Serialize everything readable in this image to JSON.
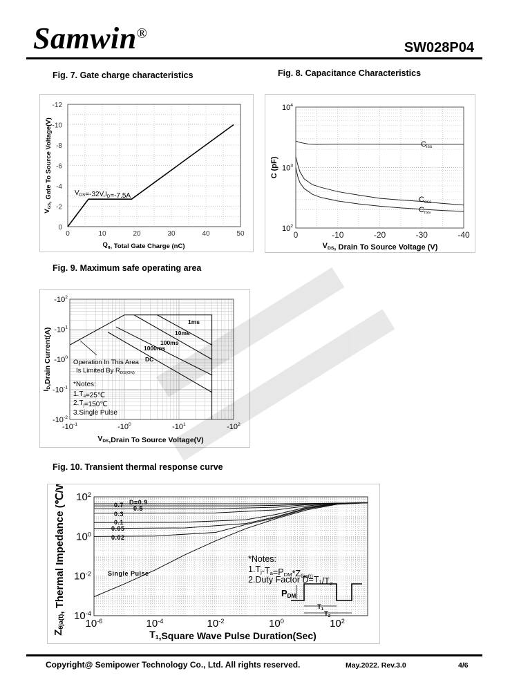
{
  "header": {
    "brand": "Samwin",
    "registered": "®",
    "part_number": "SW028P04"
  },
  "footer": {
    "copyright": "Copyright@ Semipower Technology Co., Ltd. All rights reserved.",
    "revision": "May.2022. Rev.3.0",
    "page": "4/6"
  },
  "figures": {
    "fig7": {
      "title": "Fig. 7. Gate charge characteristics"
    },
    "fig8": {
      "title": "Fig. 8. Capacitance Characteristics"
    },
    "fig9": {
      "title": "Fig. 9. Maximum safe operating area"
    },
    "fig10": {
      "title": "Fig. 10. Transient thermal response curve"
    }
  },
  "chart_data": [
    {
      "id": "fig7",
      "type": "line",
      "xlabel": "Qg, Total Gate Charge (nC)",
      "ylabel": "VGS, Gate To Source Voltage(V)",
      "xlim": [
        0,
        50
      ],
      "ylim": [
        0,
        -12
      ],
      "xticks": [
        "0",
        "10",
        "20",
        "30",
        "40",
        "50"
      ],
      "yticks": [
        "0",
        "-2",
        "-4",
        "-6",
        "-8",
        "-10",
        "-12"
      ],
      "grid": true,
      "annotation": "VDS=-32V,ID=-7.5A",
      "series": [
        {
          "x": [
            0,
            6,
            18.5,
            48
          ],
          "y": [
            0,
            -2.7,
            -2.7,
            -10
          ]
        }
      ]
    },
    {
      "id": "fig8",
      "type": "line",
      "xlabel": "VDS, Drain To Source Voltage (V)",
      "ylabel": "C (pF)",
      "xlim": [
        0,
        -40
      ],
      "ylim": [
        100,
        10000
      ],
      "yscale": "log",
      "xticks": [
        "0",
        "-10",
        "-20",
        "-30",
        "-40"
      ],
      "yticks": [
        "10^2",
        "10^3",
        "10^4"
      ],
      "grid": true,
      "series": [
        {
          "name": "Ciss",
          "x": [
            0,
            -1,
            -3,
            -5,
            -10,
            -20,
            -30,
            -40
          ],
          "y": [
            2750,
            2600,
            2450,
            2420,
            2450,
            2440,
            2430,
            2430
          ]
        },
        {
          "name": "Coss",
          "x": [
            0,
            -0.5,
            -1,
            -2,
            -4,
            -6,
            -10,
            -15,
            -20,
            -25,
            -30,
            -35,
            -40
          ],
          "y": [
            1500,
            1100,
            850,
            650,
            520,
            470,
            400,
            350,
            310,
            290,
            275,
            255,
            240
          ]
        },
        {
          "name": "Crss",
          "x": [
            0,
            -0.5,
            -1,
            -2,
            -4,
            -6,
            -10,
            -15,
            -20,
            -25,
            -30,
            -35,
            -40
          ],
          "y": [
            1000,
            700,
            560,
            450,
            360,
            320,
            280,
            250,
            230,
            215,
            205,
            195,
            188
          ]
        }
      ]
    },
    {
      "id": "fig9",
      "type": "line",
      "xlabel": "VDS,Drain To Source Voltage(V)",
      "ylabel": "ID,Drain Current(A)",
      "xlim": [
        -0.1,
        -100
      ],
      "ylim": [
        -0.01,
        -100
      ],
      "xscale": "log",
      "yscale": "log",
      "xticks": [
        "-10^-1",
        "-10^0",
        "-10^1",
        "-10^2"
      ],
      "yticks": [
        "-10^-2",
        "-10^-1",
        "-10^0",
        "-10^1",
        "-10^2"
      ],
      "grid": true,
      "annotations": [
        "Operation In This Area",
        "Is Limited By RDS(ON)"
      ],
      "notes": [
        "*Notes:",
        "1.Ta=25℃",
        "2.Tj=150℃",
        "3.Single Pulse"
      ],
      "series": [
        {
          "name": "1ms",
          "x": [
            -0.1,
            -1,
            -1.5,
            -40,
            -40
          ],
          "y": [
            -3,
            -30,
            -30,
            -30,
            -0.01
          ]
        },
        {
          "name": "10ms",
          "x": [
            -4,
            -40
          ],
          "y": [
            -30,
            -3
          ]
        },
        {
          "name": "100ms",
          "x": [
            -1.5,
            -40
          ],
          "y": [
            -30,
            -1
          ]
        },
        {
          "name": "1000ms",
          "x": [
            -0.7,
            -40
          ],
          "y": [
            -12,
            -0.3
          ]
        },
        {
          "name": "DC",
          "x": [
            -0.5,
            -40
          ],
          "y": [
            -8,
            -0.08
          ]
        }
      ]
    },
    {
      "id": "fig10",
      "type": "line",
      "xlabel": "T1,Square Wave Pulse Duration(Sec)",
      "ylabel": "Zθja(t), Thermal Impedance (℃/W)",
      "xlim": [
        1e-06,
        1000
      ],
      "ylim": [
        0.0001,
        100
      ],
      "xscale": "log",
      "yscale": "log",
      "xticks": [
        "10^-6",
        "10^-4",
        "10^-2",
        "10^0",
        "10^2"
      ],
      "yticks": [
        "10^-4",
        "10^-2",
        "10^0",
        "10^2"
      ],
      "grid": true,
      "notes": [
        "*Notes:",
        "1.Tj-Ta=PDM*Zθja(t)",
        "2.Duty Factor D=T1/T2"
      ],
      "inset_labels": {
        "pdm": "PDM",
        "t1": "T1",
        "t2": "T2"
      },
      "series": [
        {
          "name": "D=0.9",
          "x": [
            1e-06,
            0.1,
            1,
            10,
            100,
            1000
          ],
          "y": [
            45,
            45,
            45,
            46,
            48,
            50
          ]
        },
        {
          "name": "0.7",
          "x": [
            1e-06,
            0.1,
            1,
            10,
            100,
            1000
          ],
          "y": [
            35,
            35,
            37,
            42,
            48,
            50
          ]
        },
        {
          "name": "0.5",
          "x": [
            1e-06,
            0.01,
            1,
            10,
            100,
            1000
          ],
          "y": [
            25,
            25,
            30,
            40,
            48,
            50
          ]
        },
        {
          "name": "0.3",
          "x": [
            1e-06,
            0.01,
            1,
            10,
            100,
            1000
          ],
          "y": [
            15,
            15.5,
            22,
            35,
            47,
            50
          ]
        },
        {
          "name": "0.1",
          "x": [
            1e-06,
            0.001,
            0.1,
            1,
            10,
            100,
            1000
          ],
          "y": [
            5,
            5.2,
            7,
            13,
            30,
            46,
            50
          ]
        },
        {
          "name": "0.05",
          "x": [
            1e-06,
            0.001,
            0.1,
            1,
            10,
            100,
            1000
          ],
          "y": [
            2.5,
            2.7,
            4.5,
            10,
            27,
            45,
            50
          ]
        },
        {
          "name": "0.02",
          "x": [
            1e-06,
            0.0001,
            0.01,
            0.1,
            1,
            10,
            100,
            1000
          ],
          "y": [
            1,
            1.05,
            1.6,
            4,
            9,
            25,
            44,
            50
          ]
        },
        {
          "name": "Single Pulse",
          "x": [
            1e-06,
            1e-05,
            0.0001,
            0.001,
            0.01,
            0.1,
            1,
            10,
            100,
            1000
          ],
          "y": [
            0.0009,
            0.004,
            0.02,
            0.12,
            0.6,
            2.5,
            8,
            22,
            42,
            50
          ]
        }
      ]
    }
  ]
}
